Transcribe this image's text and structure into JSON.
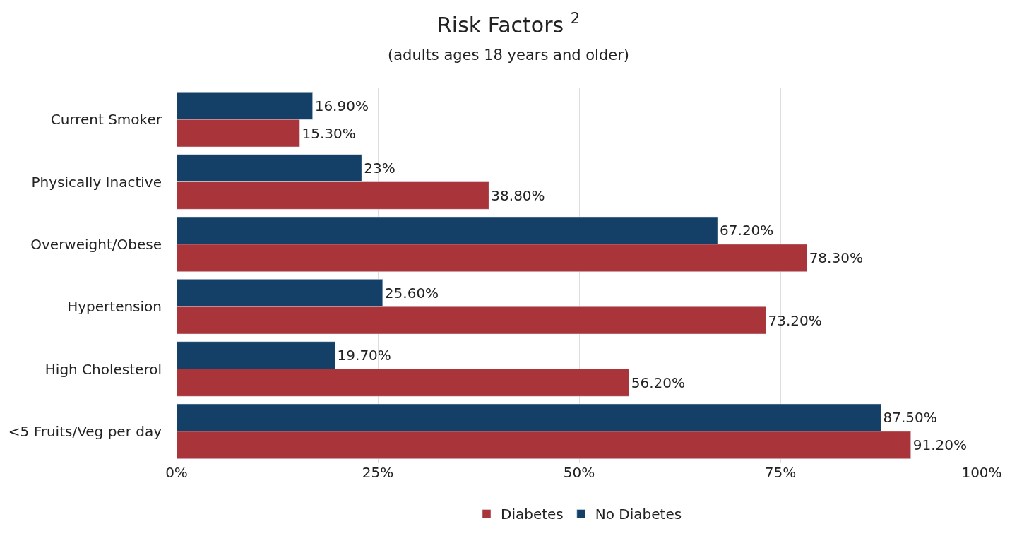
{
  "chart_data": {
    "type": "bar",
    "orientation": "horizontal",
    "title": "Risk Factors $^{2}$",
    "subtitle": "(adults ages 18 years and older)",
    "categories": [
      "Current Smoker",
      "Physically Inactive",
      "Overweight/Obese",
      "Hypertension",
      "High Cholesterol",
      "<5 Fruits/Veg per day"
    ],
    "series": [
      {
        "name": "No Diabetes",
        "color": "#143f66",
        "values": [
          16.9,
          23,
          67.2,
          25.6,
          19.7,
          87.5
        ],
        "value_labels": [
          "16.90%",
          "23%",
          "67.20%",
          "25.60%",
          "19.70%",
          "87.50%"
        ]
      },
      {
        "name": "Diabetes",
        "color": "#a9353b",
        "values": [
          15.3,
          38.8,
          78.3,
          73.2,
          56.2,
          91.2
        ],
        "value_labels": [
          "15.30%",
          "38.80%",
          "78.30%",
          "73.20%",
          "56.20%",
          "91.20%"
        ]
      }
    ],
    "xlim": [
      0,
      100
    ],
    "xticks": [
      {
        "value": 0,
        "label": "0%"
      },
      {
        "value": 25,
        "label": "25%"
      },
      {
        "value": 50,
        "label": "50%"
      },
      {
        "value": 75,
        "label": "75%"
      },
      {
        "value": 100,
        "label": "100%"
      }
    ],
    "grid": "x",
    "legend": "bottom"
  }
}
